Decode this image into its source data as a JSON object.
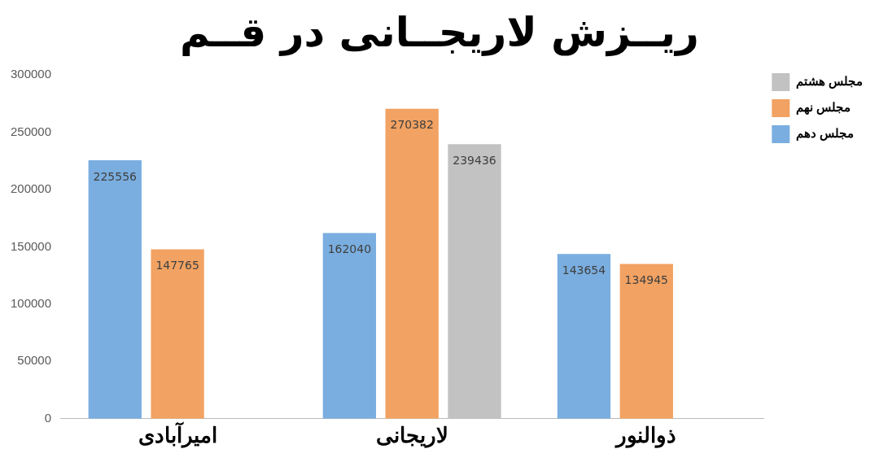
{
  "chart_data": {
    "type": "bar",
    "title": "ریــزش لاریجــانی در قــم",
    "categories": [
      "امیرآبادی",
      "لاریجانی",
      "ذوالنور"
    ],
    "series": [
      {
        "name": "مجلس دهم",
        "color": "#7aaee0",
        "values": [
          225556,
          162040,
          143654
        ]
      },
      {
        "name": "مجلس نهم",
        "color": "#f2a262",
        "values": [
          147765,
          270382,
          134945
        ]
      },
      {
        "name": "مجلس هشتم",
        "color": "#c2c2c2",
        "values": [
          null,
          239436,
          null
        ]
      }
    ],
    "ylim": [
      0,
      300000
    ],
    "yticks": [
      0,
      50000,
      100000,
      150000,
      200000,
      250000,
      300000
    ],
    "grid": false,
    "legend": "right",
    "data_labels": true
  }
}
